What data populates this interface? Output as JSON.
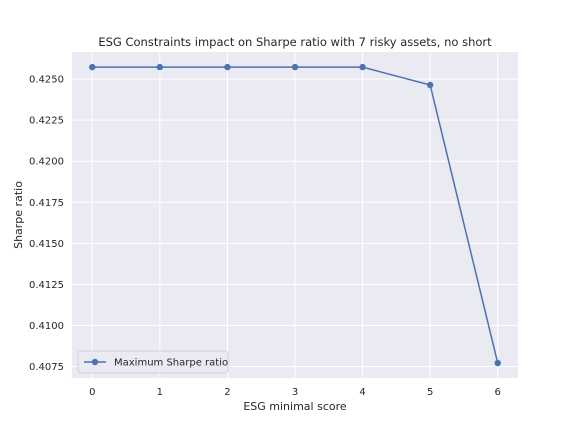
{
  "chart_data": {
    "type": "line",
    "title": "ESG Constraints impact on Sharpe ratio with 7 risky assets, no short",
    "xlabel": "ESG minimal score",
    "ylabel": "Sharpe ratio",
    "x": [
      0,
      1,
      2,
      3,
      4,
      5,
      6
    ],
    "series": [
      {
        "name": "Maximum Sharpe ratio",
        "values": [
          0.42573,
          0.42573,
          0.42573,
          0.42573,
          0.42573,
          0.42464,
          0.40771
        ],
        "color": "#4c72b0",
        "marker": "circle"
      }
    ],
    "xlim": [
      -0.3,
      6.3
    ],
    "ylim": [
      0.4068,
      0.42665
    ],
    "xticks": [
      0,
      1,
      2,
      3,
      4,
      5,
      6
    ],
    "yticks": [
      0.4075,
      0.41,
      0.4125,
      0.415,
      0.4175,
      0.42,
      0.4225,
      0.425
    ],
    "ytick_labels": [
      "0.4075",
      "0.4100",
      "0.4125",
      "0.4150",
      "0.4175",
      "0.4200",
      "0.4225",
      "0.4250"
    ],
    "grid": true,
    "legend_placement": "lower-left",
    "colors": {
      "plot_background": "#eaeaf2",
      "grid": "#ffffff"
    }
  }
}
